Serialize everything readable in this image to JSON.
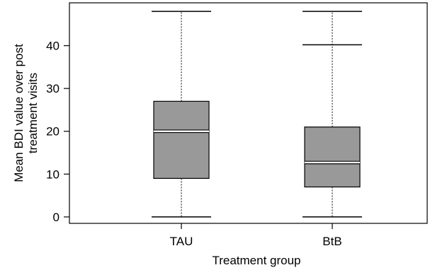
{
  "chart_data": {
    "type": "box",
    "title": "",
    "xlabel": "Treatment group",
    "ylabel_lines": [
      "Mean BDI value over post",
      "treatment visits"
    ],
    "ylim": [
      -1.5,
      50
    ],
    "yticks": [
      0,
      10,
      20,
      30,
      40
    ],
    "categories": [
      "TAU",
      "BtB"
    ],
    "boxes": [
      {
        "category": "TAU",
        "whisker_low": 0,
        "q1": 9,
        "median": 20,
        "q3": 27,
        "whisker_high": 48
      },
      {
        "category": "BtB",
        "whisker_low": 0,
        "q1": 7,
        "median": 12.7,
        "q3": 21,
        "whisker_high": 48,
        "outlier_caps": [
          40.2
        ]
      }
    ],
    "colors": {
      "box_fill": "#999999",
      "line": "#000000"
    }
  }
}
